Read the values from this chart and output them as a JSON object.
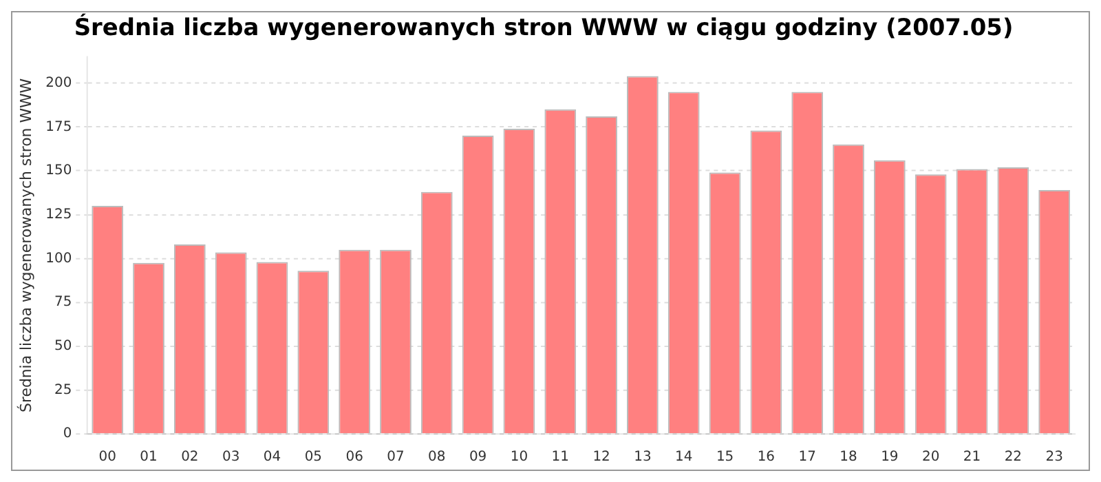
{
  "chart_data": {
    "type": "bar",
    "title": "Średnia liczba wygenerowanych stron WWW w ciągu godziny (2007.05)",
    "ylabel": "Średnia liczba wygenerowanych stron WWW",
    "categories": [
      "00",
      "01",
      "02",
      "03",
      "04",
      "05",
      "06",
      "07",
      "08",
      "09",
      "10",
      "11",
      "12",
      "13",
      "14",
      "15",
      "16",
      "17",
      "18",
      "19",
      "20",
      "21",
      "22",
      "23"
    ],
    "values": [
      130,
      97.5,
      108,
      103.5,
      98,
      93,
      105,
      105,
      138,
      170,
      174,
      185,
      181,
      204,
      195,
      149,
      173,
      195,
      165,
      156,
      148,
      151,
      152,
      139
    ],
    "color": "#ff8080",
    "ylim": [
      0,
      215
    ],
    "yticks": [
      0,
      25,
      50,
      75,
      100,
      125,
      150,
      175,
      200
    ],
    "grid": "y",
    "legend": false
  }
}
